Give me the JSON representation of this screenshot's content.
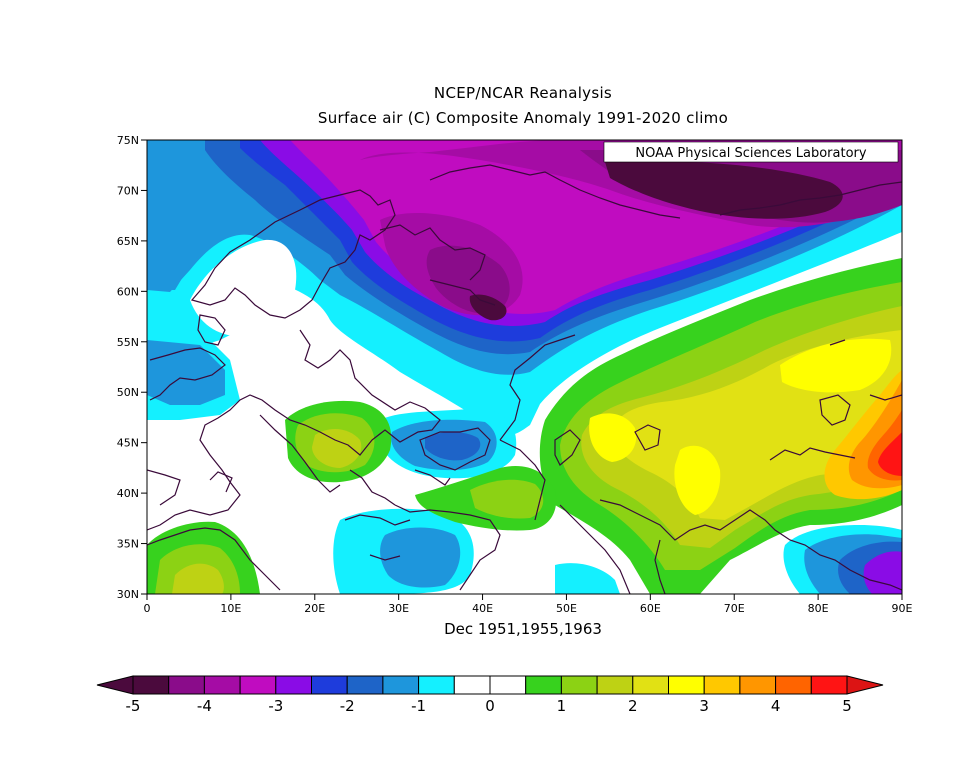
{
  "title": "NCEP/NCAR Reanalysis",
  "subtitle": "Surface air (C) Composite Anomaly 1991-2020 climo",
  "credit": "NOAA Physical Sciences Laboratory",
  "xlabel": "Dec 1951,1955,1963",
  "lat_ticks": [
    "75N",
    "70N",
    "65N",
    "60N",
    "55N",
    "50N",
    "45N",
    "40N",
    "35N",
    "30N"
  ],
  "lon_ticks": [
    "0",
    "10E",
    "20E",
    "30E",
    "40E",
    "50E",
    "60E",
    "70E",
    "80E",
    "90E"
  ],
  "colorbar": {
    "colors": [
      "#4b0a3d",
      "#8a0c8a",
      "#a50ca5",
      "#c00cc0",
      "#8a0ce6",
      "#1e3cdc",
      "#1e64c8",
      "#1e96dc",
      "#14f0ff",
      "#ffffff",
      "#ffffff",
      "#37d21e",
      "#8cd214",
      "#bed214",
      "#e1e114",
      "#ffff00",
      "#ffc800",
      "#ff9600",
      "#ff6400",
      "#ff1414"
    ],
    "left_arrow_color": "#4b0a3d",
    "right_arrow_color": "#dc1414",
    "tick_labels": [
      "-5",
      "-4",
      "-3",
      "-2",
      "-1",
      "0",
      "1",
      "2",
      "3",
      "4",
      "5"
    ]
  },
  "chart_data": {
    "type": "heatmap",
    "title": "NCEP/NCAR Reanalysis",
    "subtitle": "Surface air (C) Composite Anomaly 1991-2020 climo",
    "xlabel": "Dec 1951,1955,1963",
    "units": "C",
    "lon_range": [
      0,
      90
    ],
    "lat_range": [
      30,
      75
    ],
    "colorbar_range": [
      -5,
      5
    ],
    "features": [
      {
        "name": "strong cold anomaly",
        "lon": 78,
        "lat": 72,
        "value": -5
      },
      {
        "name": "cold anomaly",
        "lon": 42,
        "lat": 64,
        "value": -4
      },
      {
        "name": "cold anomaly",
        "lon": 40,
        "lat": 60,
        "value": -4.5
      },
      {
        "name": "cool anomaly",
        "lon": 10,
        "lat": 70,
        "value": -1.5
      },
      {
        "name": "cool anomaly",
        "lon": 36,
        "lat": 45,
        "value": -1.5
      },
      {
        "name": "cool anomaly",
        "lon": 34,
        "lat": 34,
        "value": -1
      },
      {
        "name": "warm anomaly",
        "lon": 55,
        "lat": 45,
        "value": 2
      },
      {
        "name": "warm anomaly",
        "lon": 67,
        "lat": 40,
        "value": 2.5
      },
      {
        "name": "warm anomaly",
        "lon": 80,
        "lat": 52,
        "value": 3
      },
      {
        "name": "strong warm anomaly",
        "lon": 88,
        "lat": 43,
        "value": 4.5
      },
      {
        "name": "warm anomaly",
        "lon": 25,
        "lat": 46,
        "value": 1
      },
      {
        "name": "warm anomaly",
        "lon": 8,
        "lat": 33,
        "value": 1.5
      },
      {
        "name": "cold anomaly",
        "lon": 88,
        "lat": 33,
        "value": -2
      }
    ]
  }
}
